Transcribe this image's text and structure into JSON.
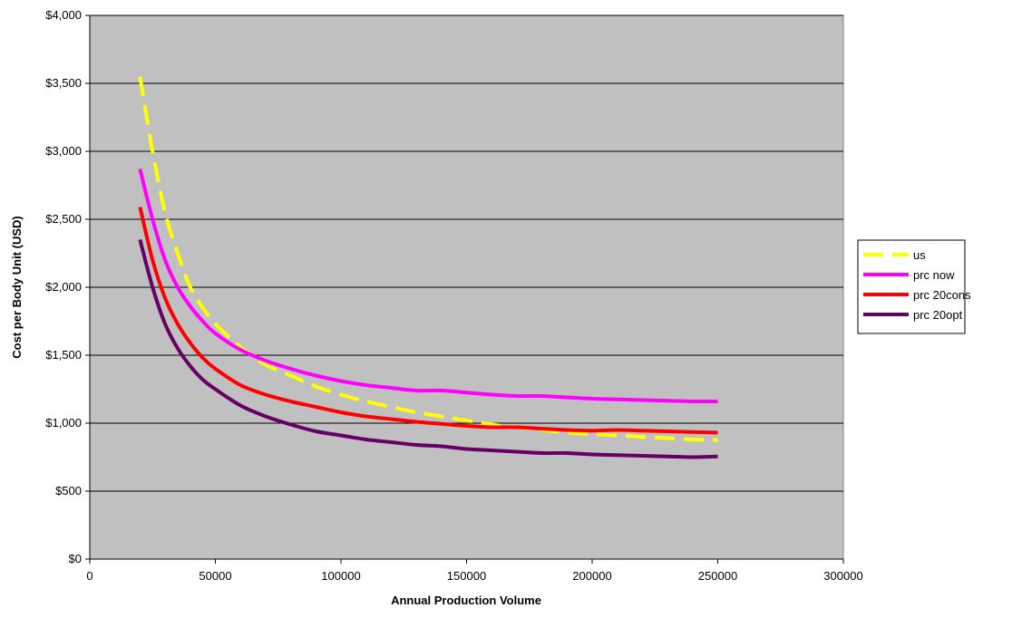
{
  "chart_data": {
    "type": "line",
    "title": "",
    "xlabel": "Annual Production Volume",
    "ylabel": "Cost per Body Unit (USD)",
    "xlim": [
      0,
      300000
    ],
    "ylim": [
      0,
      4000
    ],
    "x_ticks": [
      0,
      50000,
      100000,
      150000,
      200000,
      250000,
      300000
    ],
    "x_tick_labels": [
      "0",
      "50000",
      "100000",
      "150000",
      "200000",
      "250000",
      "300000"
    ],
    "y_ticks": [
      0,
      500,
      1000,
      1500,
      2000,
      2500,
      3000,
      3500,
      4000
    ],
    "y_tick_labels": [
      "$0",
      "$500",
      "$1,000",
      "$1,500",
      "$2,000",
      "$2,500",
      "$3,000",
      "$3,500",
      "$4,000"
    ],
    "grid": "horizontal",
    "plot_background": "#c0c0c0",
    "legend_position": "right",
    "x": [
      20000,
      25000,
      30000,
      35000,
      40000,
      45000,
      50000,
      60000,
      70000,
      80000,
      90000,
      100000,
      110000,
      120000,
      130000,
      140000,
      150000,
      160000,
      170000,
      180000,
      190000,
      200000,
      210000,
      220000,
      230000,
      240000,
      250000
    ],
    "series": [
      {
        "name": "us",
        "color": "#ffff00",
        "dash": "dashed",
        "values": [
          3550,
          3000,
          2550,
          2250,
          2000,
          1850,
          1730,
          1560,
          1430,
          1350,
          1270,
          1210,
          1160,
          1120,
          1080,
          1050,
          1020,
          990,
          970,
          950,
          930,
          920,
          910,
          900,
          890,
          880,
          875
        ]
      },
      {
        "name": "prc now",
        "color": "#ff00ff",
        "dash": "solid",
        "values": [
          2870,
          2500,
          2200,
          2000,
          1860,
          1750,
          1660,
          1540,
          1460,
          1400,
          1350,
          1310,
          1280,
          1260,
          1240,
          1240,
          1225,
          1210,
          1200,
          1200,
          1190,
          1180,
          1175,
          1170,
          1165,
          1160,
          1160
        ]
      },
      {
        "name": "prc 20cons",
        "color": "#ff0000",
        "dash": "solid",
        "values": [
          2590,
          2200,
          1920,
          1730,
          1590,
          1480,
          1400,
          1280,
          1210,
          1160,
          1120,
          1080,
          1050,
          1030,
          1010,
          995,
          980,
          970,
          970,
          960,
          950,
          945,
          950,
          945,
          940,
          935,
          930
        ]
      },
      {
        "name": "prc 20opt",
        "color": "#660066",
        "dash": "solid",
        "values": [
          2350,
          2000,
          1730,
          1550,
          1420,
          1320,
          1250,
          1130,
          1050,
          990,
          940,
          910,
          880,
          860,
          840,
          830,
          810,
          800,
          790,
          780,
          780,
          770,
          765,
          760,
          755,
          750,
          755
        ]
      }
    ]
  }
}
